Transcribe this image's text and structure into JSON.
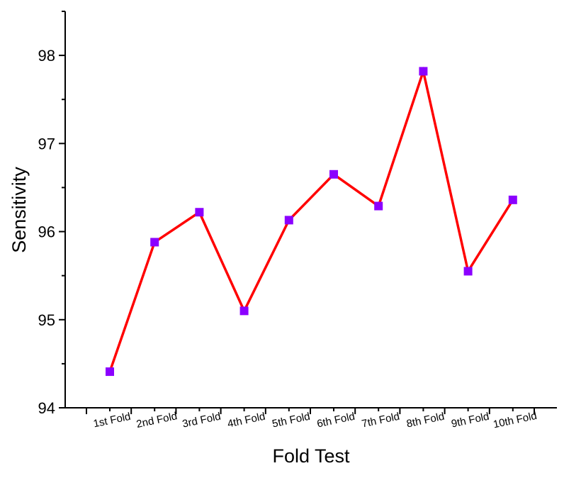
{
  "chart_data": {
    "type": "line",
    "title": "",
    "xlabel": "Fold Test",
    "ylabel": "Sensitivity",
    "categories": [
      "1st Fold",
      "2nd Fold",
      "3rd Fold",
      "4th Fold",
      "5th Fold",
      "6th Fold",
      "7th Fold",
      "8th Fold",
      "9th Fold",
      "10th Fold"
    ],
    "series": [
      {
        "values": [
          94.41,
          95.88,
          96.22,
          95.1,
          96.13,
          96.65,
          96.29,
          97.82,
          95.55,
          96.36
        ],
        "line_color": "#ff0000",
        "marker_color": "#8b00ff",
        "marker": "square"
      }
    ],
    "ylim": [
      94,
      98.5
    ],
    "yticks": [
      "94",
      "95",
      "96",
      "97",
      "98"
    ],
    "grid": false,
    "legend": "none"
  }
}
